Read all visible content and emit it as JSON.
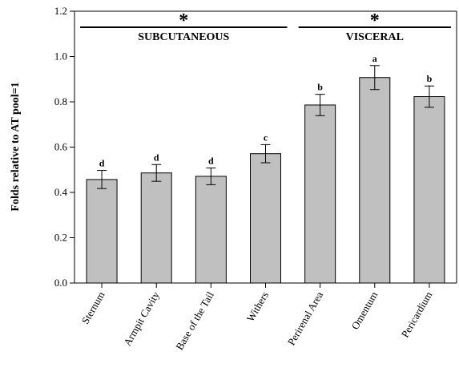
{
  "chart_data": {
    "type": "bar",
    "ylabel": "Folds relative to AT pool=1",
    "ylim": [
      0.0,
      1.2
    ],
    "yticks": [
      "0.0",
      "0.2",
      "0.4",
      "0.6",
      "0.8",
      "1.0",
      "1.2"
    ],
    "yticks_values": [
      0.0,
      0.2,
      0.4,
      0.6,
      0.8,
      1.0,
      1.2
    ],
    "categories": [
      "Sternum",
      "Armpit Cavity",
      "Base of the Tail",
      "Withers",
      "Perirenal Area",
      "Omentum",
      "Pericardium"
    ],
    "values": [
      0.457,
      0.486,
      0.471,
      0.571,
      0.786,
      0.907,
      0.823
    ],
    "errors": [
      0.04,
      0.037,
      0.037,
      0.04,
      0.047,
      0.053,
      0.047
    ],
    "significance": [
      "d",
      "d",
      "d",
      "c",
      "b",
      "a",
      "b"
    ],
    "bar_color": "#c0c0c0",
    "groups": [
      {
        "label": "SUBCUTANEOUS",
        "marker": "*",
        "from_index": 0,
        "to_index": 3
      },
      {
        "label": "VISCERAL",
        "marker": "*",
        "from_index": 4,
        "to_index": 6
      }
    ],
    "grid": false
  }
}
